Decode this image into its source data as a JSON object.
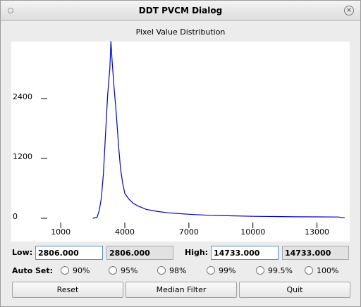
{
  "window": {
    "title": "DDT PVCM Dialog"
  },
  "chart_data": {
    "type": "line",
    "title": "Pixel Value Distribution",
    "x": [
      2500,
      2700,
      2800,
      2900,
      3000,
      3100,
      3200,
      3300,
      3350,
      3400,
      3450,
      3500,
      3600,
      3700,
      3800,
      3900,
      4000,
      4200,
      4400,
      4600,
      5000,
      5500,
      6000,
      7000,
      8000,
      9000,
      10000,
      11000,
      12000,
      13000,
      14000,
      14300
    ],
    "values": [
      0,
      20,
      150,
      400,
      900,
      1700,
      2500,
      3000,
      3550,
      3200,
      2900,
      2600,
      2100,
      1500,
      1000,
      700,
      500,
      380,
      300,
      250,
      180,
      140,
      110,
      80,
      60,
      50,
      40,
      35,
      30,
      28,
      25,
      10
    ],
    "color": "#0000cc",
    "xlim": [
      500,
      14500
    ],
    "xticks": [
      1000,
      4000,
      7000,
      10000,
      13000
    ],
    "ylim": [
      0,
      3600
    ],
    "yticks": [
      0,
      1200,
      2400
    ]
  },
  "controls": {
    "low_label": "Low:",
    "low_input": "2806.000",
    "low_value": "2806.000",
    "high_label": "High:",
    "high_input": "14733.000",
    "high_value": "14733.000",
    "auto_set_label": "Auto Set:",
    "auto_set_options": [
      "90%",
      "95%",
      "98%",
      "99%",
      "99.5%",
      "100%"
    ],
    "buttons": [
      "Reset",
      "Median Filter",
      "Quit"
    ]
  }
}
